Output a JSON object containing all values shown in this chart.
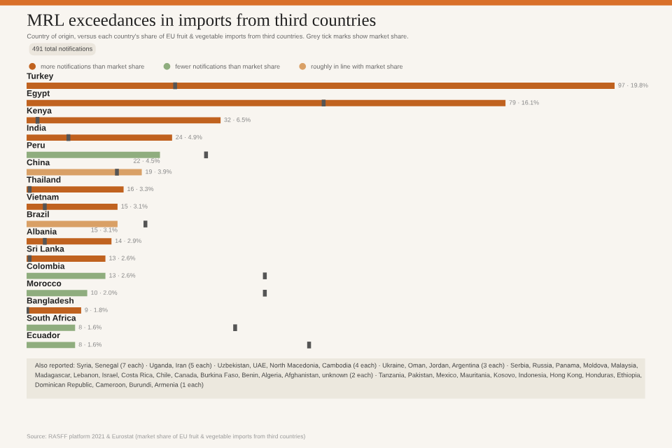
{
  "chart_data": {
    "type": "bar",
    "orientation": "horizontal",
    "title": "MRL exceedances in imports from third countries",
    "subtitle": "Country of origin, versus each country's share of EU fruit & vegetable imports from third countries. Grey tick marks show market share.",
    "categories": [
      "Turkey",
      "Egypt",
      "Kenya",
      "India",
      "Peru",
      "China",
      "Thailand",
      "Vietnam",
      "Brazil",
      "Albania",
      "Sri Lanka",
      "Colombia",
      "Morocco",
      "Bangladesh",
      "South Africa",
      "Ecuador"
    ],
    "series": [
      {
        "name": "more notifications than market share",
        "color": "#c0621f",
        "values": [
          97,
          79,
          32,
          24,
          null,
          null,
          16,
          15,
          null,
          14,
          13,
          null,
          null,
          9,
          null,
          null
        ],
        "value_labels": [
          "97 · 19.8%",
          "79 · 16.1%",
          "32 · 6.5%",
          "24 · 4.9%",
          null,
          null,
          "16 · 3.3%",
          "15 · 3.1%",
          null,
          "14 · 2.9%",
          "13 · 2.6%",
          null,
          null,
          "9 · 1.8%",
          null,
          null
        ]
      },
      {
        "name": "fewer notifications than market share",
        "color": "#8fad7e",
        "values": [
          null,
          null,
          null,
          null,
          22,
          null,
          null,
          null,
          null,
          null,
          null,
          13,
          10,
          null,
          8,
          8
        ],
        "value_labels": [
          null,
          null,
          null,
          null,
          "22 · 4.5%",
          null,
          null,
          null,
          null,
          null,
          null,
          "13 · 2.6%",
          "10 · 2.0%",
          null,
          "8 · 1.6%",
          "8 · 1.6%"
        ]
      },
      {
        "name": "roughly in line with market share",
        "color": "#d9a066",
        "values": [
          null,
          null,
          null,
          null,
          null,
          19,
          null,
          null,
          15,
          null,
          null,
          null,
          null,
          null,
          null,
          null
        ],
        "value_labels": [
          null,
          null,
          null,
          null,
          null,
          "19 · 3.9%",
          null,
          null,
          "15 · 3.1%",
          null,
          null,
          null,
          null,
          null,
          null,
          null
        ]
      },
      {
        "type": "scatter",
        "color": "#555555",
        "x": [
          "Turkey",
          "Egypt",
          "Kenya",
          "India",
          "Peru",
          "China",
          "Thailand",
          "Vietnam",
          "Brazil",
          "Albania",
          "Sri Lanka",
          "Colombia",
          "Morocco",
          "Bangladesh",
          "South Africa",
          "Ecuador"
        ],
        "values": [
          24.5,
          49,
          1.8,
          6.9,
          29.6,
          14.9,
          0.5,
          3,
          19.6,
          3,
          0.5,
          39.3,
          39.3,
          0.1,
          34.4,
          46.6
        ]
      }
    ],
    "legend": "top left",
    "annotations": [
      "491 total notifications",
      "Also reported: Syria, Senegal (7 each) · Uganda, Iran (5 each) · Uzbekistan, UAE, North Macedonia, Cambodia (4 each) · Ukraine, Oman, Jordan, Argentina (3 each) · Serbia, Russia, Panama, Moldova, Malaysia, Madagascar, Lebanon, Israel, Costa Rica, Chile, Canada, Burkina Faso, Benin, Algeria, Afghanistan, unknown (2 each) · Tanzania, Pakistan, Mexico, Mauritania, Kosovo, Indonesia, Hong Kong, Honduras, Ethiopia, Dominican Republic, Cameroon, Burundi, Armenia (1 each)",
      "Source: RASFF platform 2021 & Eurostat (market share of EU fruit & vegetable imports from third countries)"
    ]
  }
}
